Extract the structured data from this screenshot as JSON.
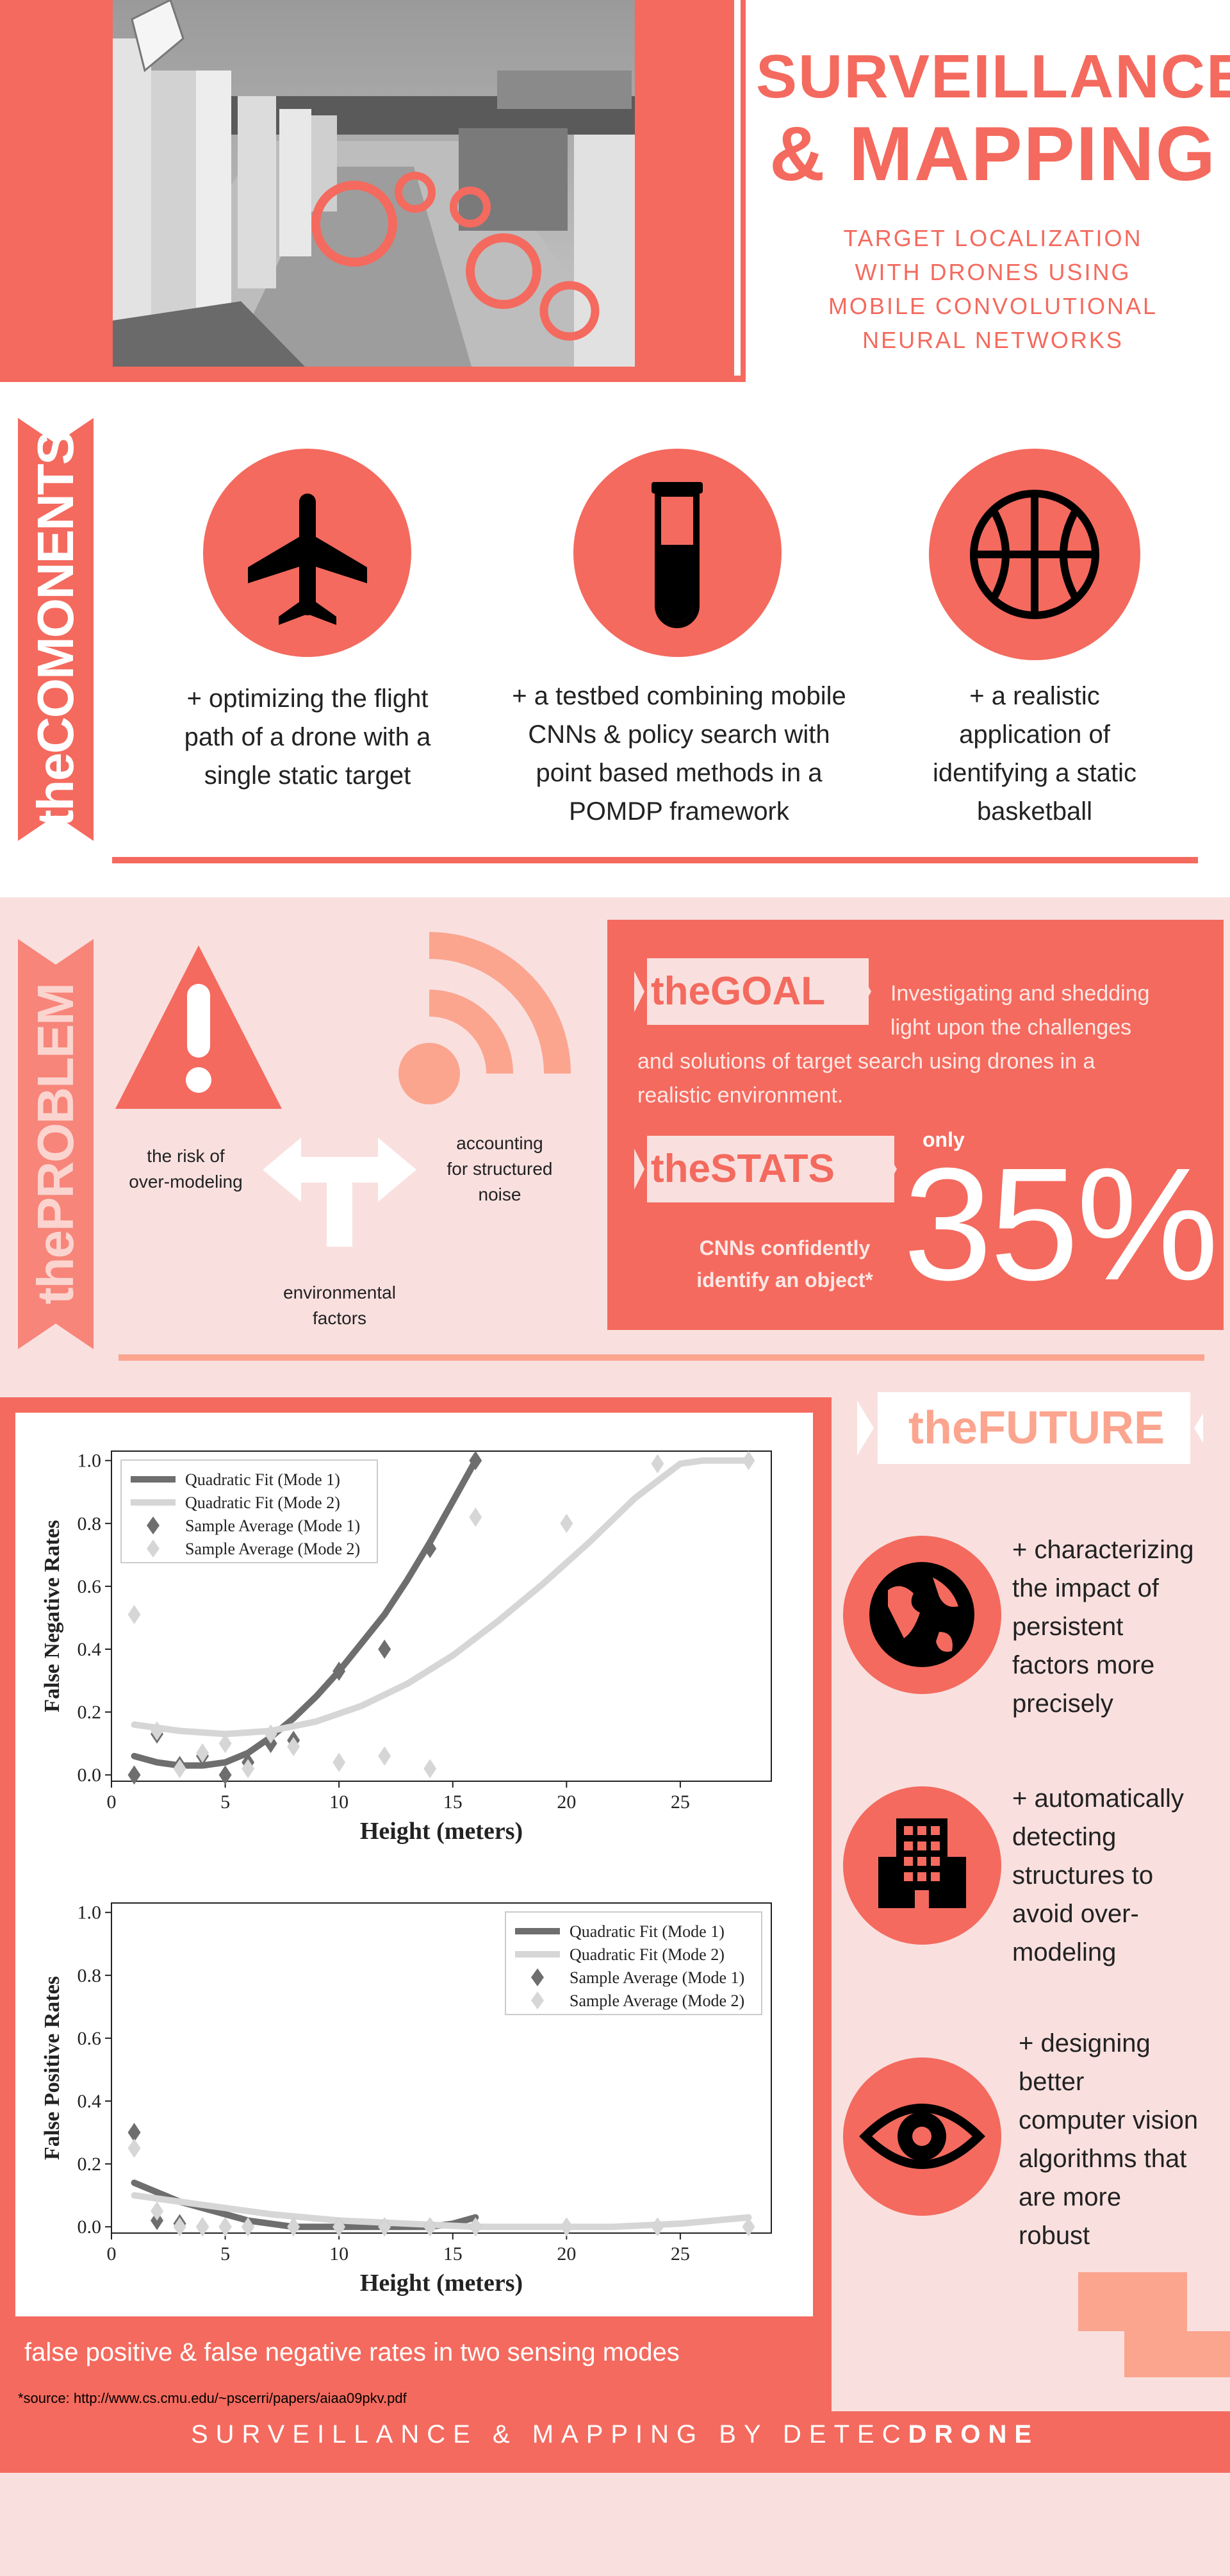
{
  "header": {
    "title_line1": "SURVEILLANCE",
    "title_line2": "& MAPPING",
    "subtitle_lines": [
      "TARGET LOCALIZATION",
      "WITH DRONES USING",
      "MOBILE CONVOLUTIONAL",
      "NEURAL NETWORKS"
    ]
  },
  "components": {
    "banner_label": "theCOMONENTS",
    "items": [
      {
        "icon": "airplane-icon",
        "lines": [
          "+ optimizing the flight",
          "path of a drone with a",
          "single static target"
        ]
      },
      {
        "icon": "test-tube-icon",
        "lines": [
          "+ a testbed combining mobile",
          "CNNs & policy search with",
          "point based methods in a",
          "POMDP framework"
        ]
      },
      {
        "icon": "basketball-icon",
        "lines": [
          "+ a realistic",
          "application of",
          "identifying a static",
          "basketball"
        ]
      }
    ]
  },
  "problem": {
    "banner_label": "thePROBLEM",
    "labels": {
      "over_modeling": [
        "the risk of",
        "over-modeling"
      ],
      "noise": [
        "accounting",
        "for structured",
        "noise"
      ],
      "environmental": [
        "environmental",
        "factors"
      ]
    },
    "goal": {
      "tag": "theGOAL",
      "text_right": [
        "Investigating and shedding",
        "light upon the challenges"
      ],
      "text_full": [
        "and solutions of target search using drones in a",
        "realistic environment."
      ]
    },
    "stats": {
      "tag": "theSTATS",
      "caption": [
        "CNNs confidently",
        "identify an object*"
      ],
      "prefix": "only",
      "value": "35%"
    }
  },
  "future": {
    "tag": "theFUTURE",
    "items": [
      {
        "icon": "globe-icon",
        "lines": [
          "+ characterizing",
          "the impact of",
          "persistent",
          "factors more",
          "precisely"
        ]
      },
      {
        "icon": "building-icon",
        "lines": [
          "+ automatically",
          "detecting",
          "structures to",
          "avoid over-",
          "modeling"
        ]
      },
      {
        "icon": "eye-icon",
        "lines": [
          "+ designing",
          "better",
          "computer vision",
          "algorithms that",
          "are more",
          "robust"
        ]
      }
    ]
  },
  "chart_caption": "false positive & false negative rates in two sensing modes",
  "source": "*source: http://www.cs.cmu.edu/~pscerri/papers/aiaa09pkv.pdf",
  "footer": {
    "prefix": "SURVEILLANCE & MAPPING BY DETEC",
    "bold": "DRONE"
  },
  "colors": {
    "accent": "#f46a5e",
    "panel_pink": "#f9e0df",
    "salmon": "#fba58f",
    "mode1": "#6e6e6e",
    "mode2": "#d6d6d6"
  },
  "chart_data": [
    {
      "type": "scatter",
      "xlabel": "Height (meters)",
      "ylabel": "False Negative Rates",
      "xlim": [
        0,
        29
      ],
      "ylim": [
        -0.02,
        1.03
      ],
      "xticks": [
        0,
        5,
        10,
        15,
        20,
        25
      ],
      "yticks": [
        0.0,
        0.2,
        0.4,
        0.6,
        0.8,
        1.0
      ],
      "legend_position": "top-left",
      "series": [
        {
          "name": "Quadratic Fit (Mode 1)",
          "kind": "line",
          "color": "#6e6e6e",
          "x": [
            1,
            2,
            3,
            4,
            5,
            6,
            7,
            8,
            9,
            10,
            11,
            12,
            13,
            14,
            15,
            16
          ],
          "y": [
            0.06,
            0.04,
            0.03,
            0.03,
            0.04,
            0.07,
            0.12,
            0.18,
            0.25,
            0.33,
            0.42,
            0.51,
            0.62,
            0.74,
            0.87,
            1.0
          ]
        },
        {
          "name": "Quadratic Fit (Mode 2)",
          "kind": "line",
          "color": "#d6d6d6",
          "x": [
            1,
            3,
            5,
            7,
            9,
            11,
            13,
            15,
            17,
            19,
            21,
            23,
            25,
            26,
            28
          ],
          "y": [
            0.16,
            0.14,
            0.13,
            0.14,
            0.17,
            0.22,
            0.29,
            0.38,
            0.49,
            0.61,
            0.74,
            0.88,
            0.99,
            1.0,
            1.0
          ]
        },
        {
          "name": "Sample Average (Mode 1)",
          "kind": "points",
          "color": "#6e6e6e",
          "x": [
            1,
            2,
            3,
            4,
            5,
            6,
            7,
            8,
            10,
            12,
            14,
            16
          ],
          "y": [
            0.0,
            0.13,
            0.03,
            0.06,
            0.0,
            0.04,
            0.1,
            0.11,
            0.33,
            0.4,
            0.72,
            1.0
          ]
        },
        {
          "name": "Sample Average (Mode 2)",
          "kind": "points",
          "color": "#d6d6d6",
          "x": [
            1,
            2,
            3,
            4,
            5,
            6,
            7,
            8,
            10,
            12,
            14,
            16,
            20,
            24,
            28
          ],
          "y": [
            0.51,
            0.14,
            0.02,
            0.07,
            0.1,
            0.02,
            0.13,
            0.09,
            0.04,
            0.06,
            0.02,
            0.82,
            0.8,
            0.99,
            1.0
          ]
        }
      ]
    },
    {
      "type": "scatter",
      "xlabel": "Height (meters)",
      "ylabel": "False Positive Rates",
      "xlim": [
        0,
        29
      ],
      "ylim": [
        -0.02,
        1.03
      ],
      "xticks": [
        0,
        5,
        10,
        15,
        20,
        25
      ],
      "yticks": [
        0.0,
        0.2,
        0.4,
        0.6,
        0.8,
        1.0
      ],
      "legend_position": "top-right",
      "series": [
        {
          "name": "Quadratic Fit (Mode 1)",
          "kind": "line",
          "color": "#6e6e6e",
          "x": [
            1,
            2,
            3,
            4,
            5,
            6,
            7,
            8,
            9,
            10,
            11,
            12,
            13,
            14,
            15,
            16
          ],
          "y": [
            0.14,
            0.11,
            0.08,
            0.06,
            0.04,
            0.02,
            0.01,
            0.0,
            0.0,
            0.0,
            0.0,
            0.0,
            0.0,
            0.0,
            0.01,
            0.03
          ]
        },
        {
          "name": "Quadratic Fit (Mode 2)",
          "kind": "line",
          "color": "#d6d6d6",
          "x": [
            1,
            4,
            7,
            10,
            13,
            16,
            19,
            22,
            25,
            28
          ],
          "y": [
            0.1,
            0.07,
            0.04,
            0.02,
            0.01,
            0.0,
            0.0,
            0.0,
            0.01,
            0.03
          ]
        },
        {
          "name": "Sample Average (Mode 1)",
          "kind": "points",
          "color": "#6e6e6e",
          "x": [
            1,
            2,
            3,
            4,
            5,
            6,
            8,
            10,
            12,
            14,
            16
          ],
          "y": [
            0.3,
            0.02,
            0.01,
            0.0,
            0.0,
            0.0,
            0.0,
            0.0,
            0.0,
            0.0,
            0.0
          ]
        },
        {
          "name": "Sample Average (Mode 2)",
          "kind": "points",
          "color": "#d6d6d6",
          "x": [
            1,
            2,
            3,
            4,
            5,
            6,
            8,
            10,
            12,
            14,
            16,
            20,
            24,
            28
          ],
          "y": [
            0.25,
            0.05,
            0.0,
            0.0,
            0.0,
            0.0,
            0.0,
            0.0,
            0.0,
            0.0,
            0.0,
            0.0,
            0.0,
            0.0
          ]
        }
      ]
    }
  ]
}
